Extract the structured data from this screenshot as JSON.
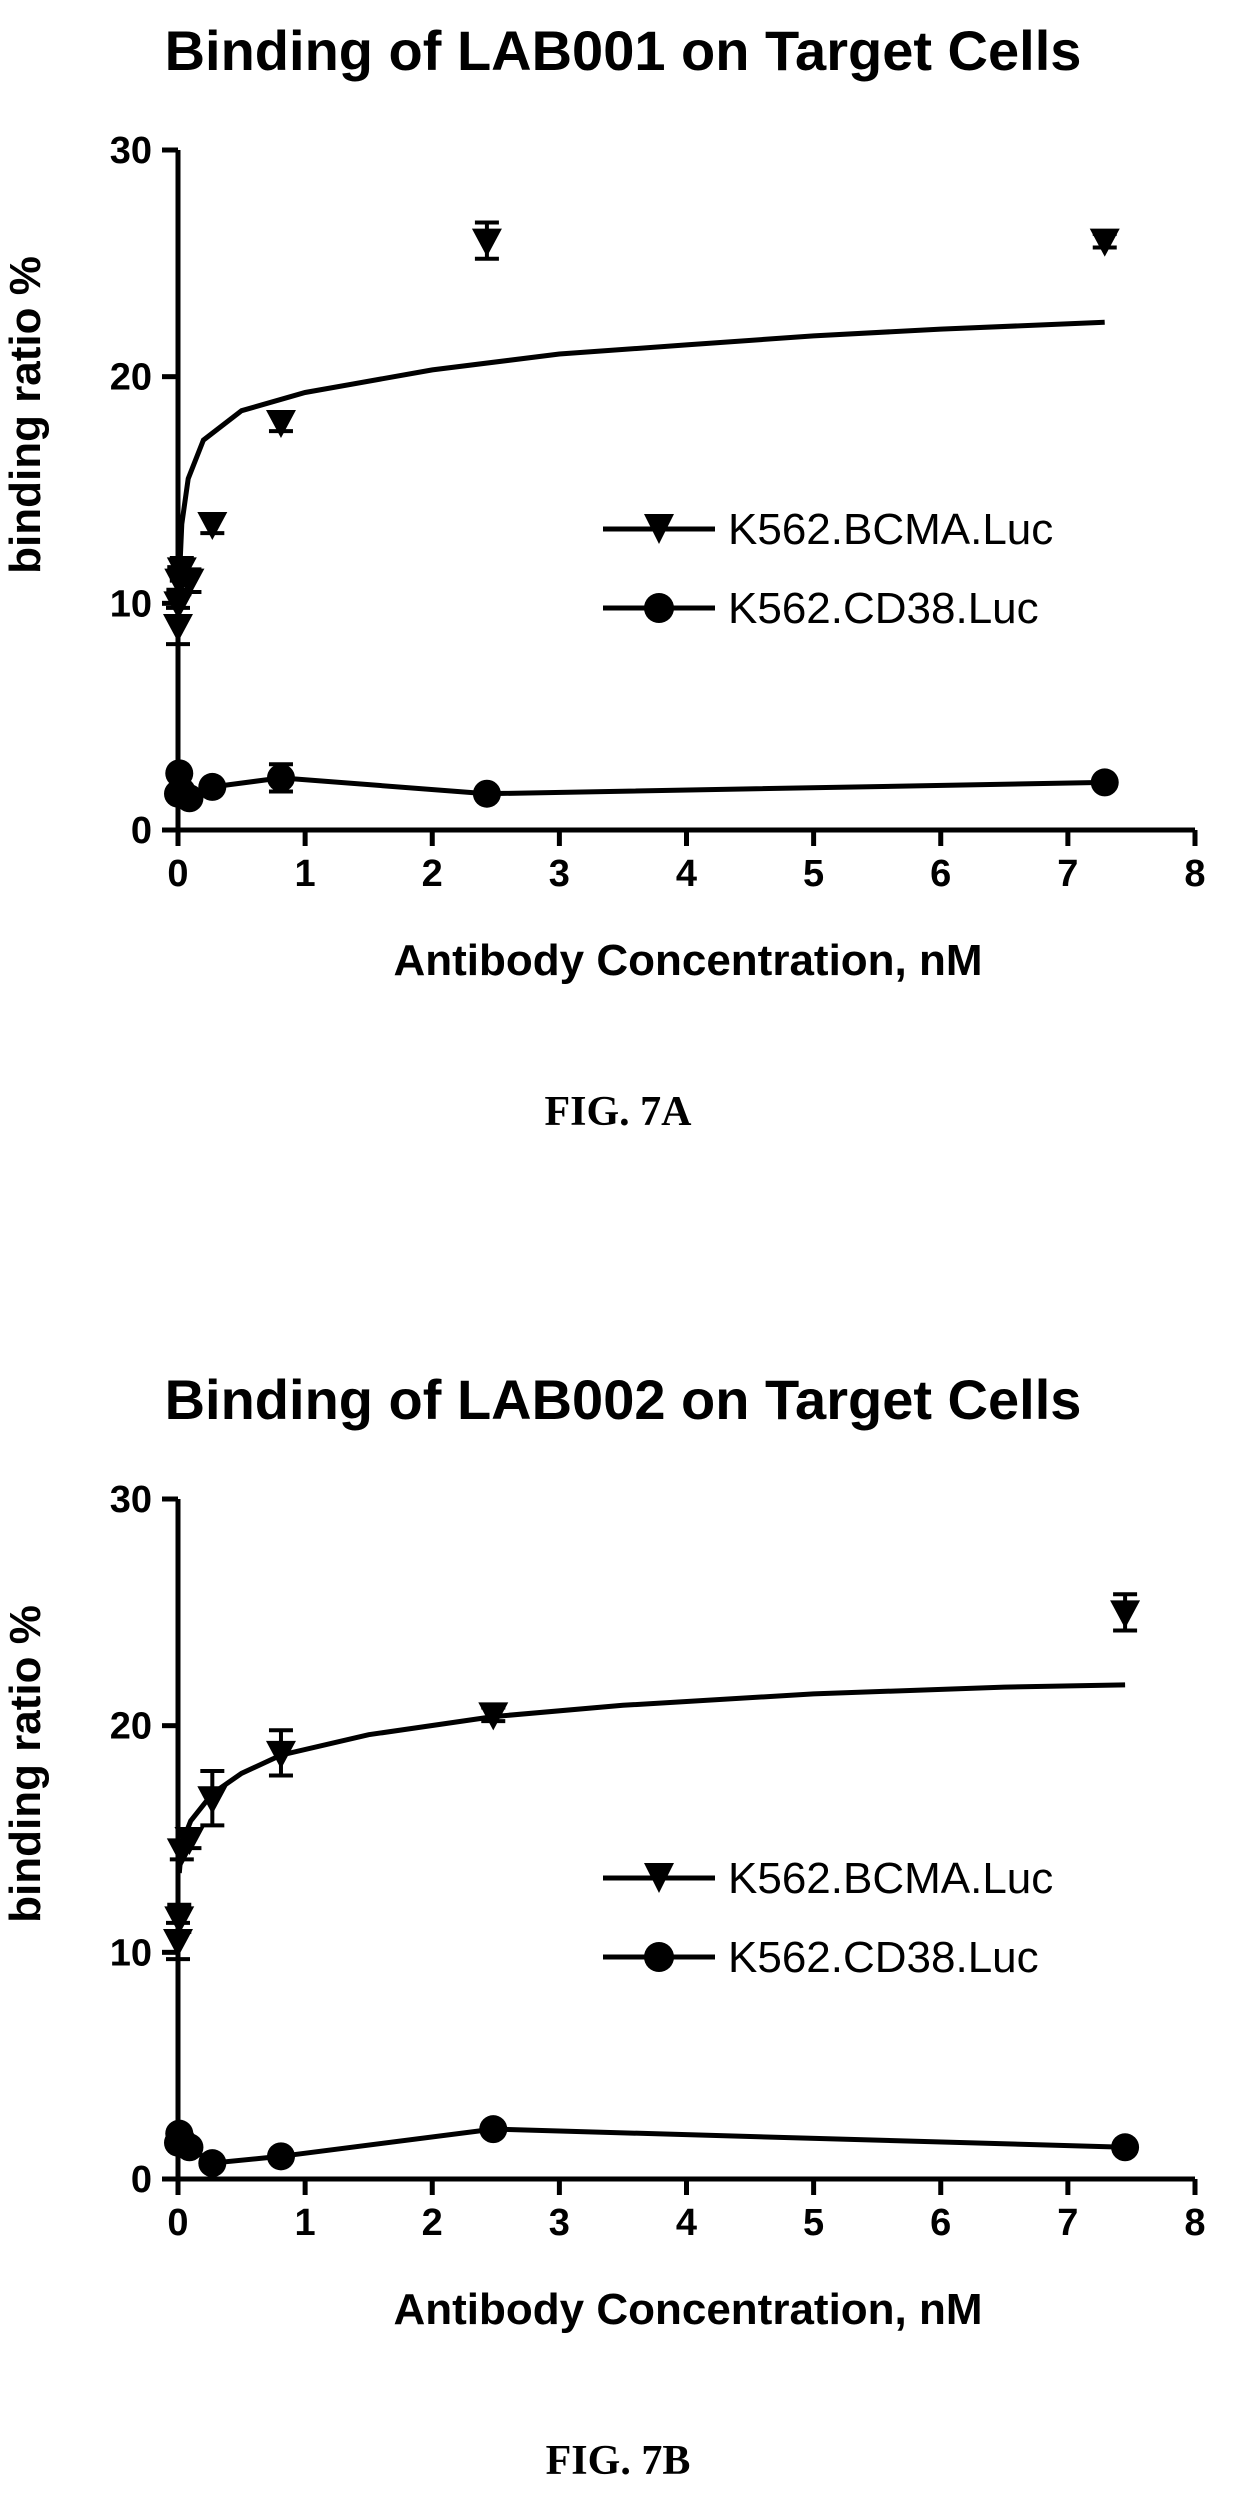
{
  "chart_data": [
    {
      "type": "scatter",
      "title": "Binding of LAB001 on Target Cells",
      "xlabel": "Antibody Concentration, nM",
      "ylabel": "binding ratio %",
      "xlim": [
        0,
        8
      ],
      "ylim": [
        0,
        30
      ],
      "xticks": [
        "0",
        "1",
        "2",
        "3",
        "4",
        "5",
        "6",
        "7",
        "8"
      ],
      "yticks": [
        "0",
        "10",
        "20",
        "30"
      ],
      "legend_position": "center-right",
      "caption": "FIG. 7A",
      "series": [
        {
          "name": "K562.BCMA.Luc",
          "marker": "triangle-down",
          "x": [
            0,
            0.003,
            0.01,
            0.03,
            0.09,
            0.27,
            0.81,
            2.43,
            7.29
          ],
          "y": [
            9.0,
            10.0,
            11.0,
            11.5,
            11.0,
            13.5,
            18.0,
            26.0,
            26.0
          ],
          "error": [
            0.8,
            0.6,
            0.6,
            0.5,
            0.5,
            0.4,
            0.4,
            0.8,
            0.3
          ],
          "fit": [
            [
              0.01,
              11.0
            ],
            [
              0.03,
              13.5
            ],
            [
              0.08,
              15.5
            ],
            [
              0.2,
              17.2
            ],
            [
              0.5,
              18.5
            ],
            [
              1.0,
              19.3
            ],
            [
              2.0,
              20.3
            ],
            [
              3.0,
              21.0
            ],
            [
              4.0,
              21.4
            ],
            [
              5.0,
              21.8
            ],
            [
              6.0,
              22.1
            ],
            [
              7.29,
              22.4
            ]
          ]
        },
        {
          "name": "K562.CD38.Luc",
          "marker": "circle",
          "x": [
            0,
            0.01,
            0.03,
            0.09,
            0.27,
            0.81,
            2.43,
            7.29
          ],
          "y": [
            1.6,
            2.5,
            1.7,
            1.4,
            1.9,
            2.3,
            1.6,
            2.1
          ],
          "error": [
            0.2,
            0.2,
            0.2,
            0.2,
            0.2,
            0.6,
            0.2,
            0.2
          ],
          "fit": [
            [
              0.01,
              2.3
            ],
            [
              0.03,
              1.7
            ],
            [
              0.09,
              1.4
            ],
            [
              0.27,
              1.9
            ],
            [
              0.81,
              2.3
            ],
            [
              2.43,
              1.6
            ],
            [
              7.29,
              2.1
            ]
          ]
        }
      ]
    },
    {
      "type": "scatter",
      "title": "Binding of LAB002 on Target Cells",
      "xlabel": "Antibody Concentration, nM",
      "ylabel": "binding ratio %",
      "xlim": [
        0,
        8
      ],
      "ylim": [
        0,
        30
      ],
      "xticks": [
        "0",
        "1",
        "2",
        "3",
        "4",
        "5",
        "6",
        "7",
        "8"
      ],
      "yticks": [
        "0",
        "10",
        "20",
        "30"
      ],
      "legend_position": "center-right",
      "caption": "FIG. 7B",
      "series": [
        {
          "name": "K562.BCMA.Luc",
          "marker": "triangle-down",
          "x": [
            0,
            0.01,
            0.03,
            0.09,
            0.27,
            0.81,
            2.48,
            7.45
          ],
          "y": [
            10.5,
            11.5,
            14.5,
            15.0,
            16.8,
            18.8,
            20.5,
            25.0
          ],
          "error": [
            0.8,
            0.6,
            0.4,
            0.4,
            1.2,
            1.0,
            0.3,
            0.8
          ],
          "fit": [
            [
              0.01,
              13.5
            ],
            [
              0.03,
              14.8
            ],
            [
              0.1,
              15.8
            ],
            [
              0.27,
              17.0
            ],
            [
              0.5,
              17.9
            ],
            [
              0.81,
              18.7
            ],
            [
              1.5,
              19.6
            ],
            [
              2.48,
              20.4
            ],
            [
              3.5,
              20.9
            ],
            [
              5.0,
              21.4
            ],
            [
              6.5,
              21.7
            ],
            [
              7.45,
              21.8
            ]
          ]
        },
        {
          "name": "K562.CD38.Luc",
          "marker": "circle",
          "x": [
            0,
            0.01,
            0.03,
            0.09,
            0.27,
            0.81,
            2.48,
            7.45
          ],
          "y": [
            1.6,
            2.0,
            1.7,
            1.4,
            0.7,
            1.0,
            2.2,
            1.4
          ],
          "error": [
            0.2,
            0.2,
            0.2,
            0.2,
            0.2,
            0.2,
            0.2,
            0.2
          ],
          "fit": [
            [
              0.01,
              2.0
            ],
            [
              0.03,
              1.7
            ],
            [
              0.09,
              1.4
            ],
            [
              0.27,
              0.7
            ],
            [
              0.81,
              1.0
            ],
            [
              2.48,
              2.2
            ],
            [
              7.45,
              1.4
            ]
          ]
        }
      ]
    }
  ]
}
